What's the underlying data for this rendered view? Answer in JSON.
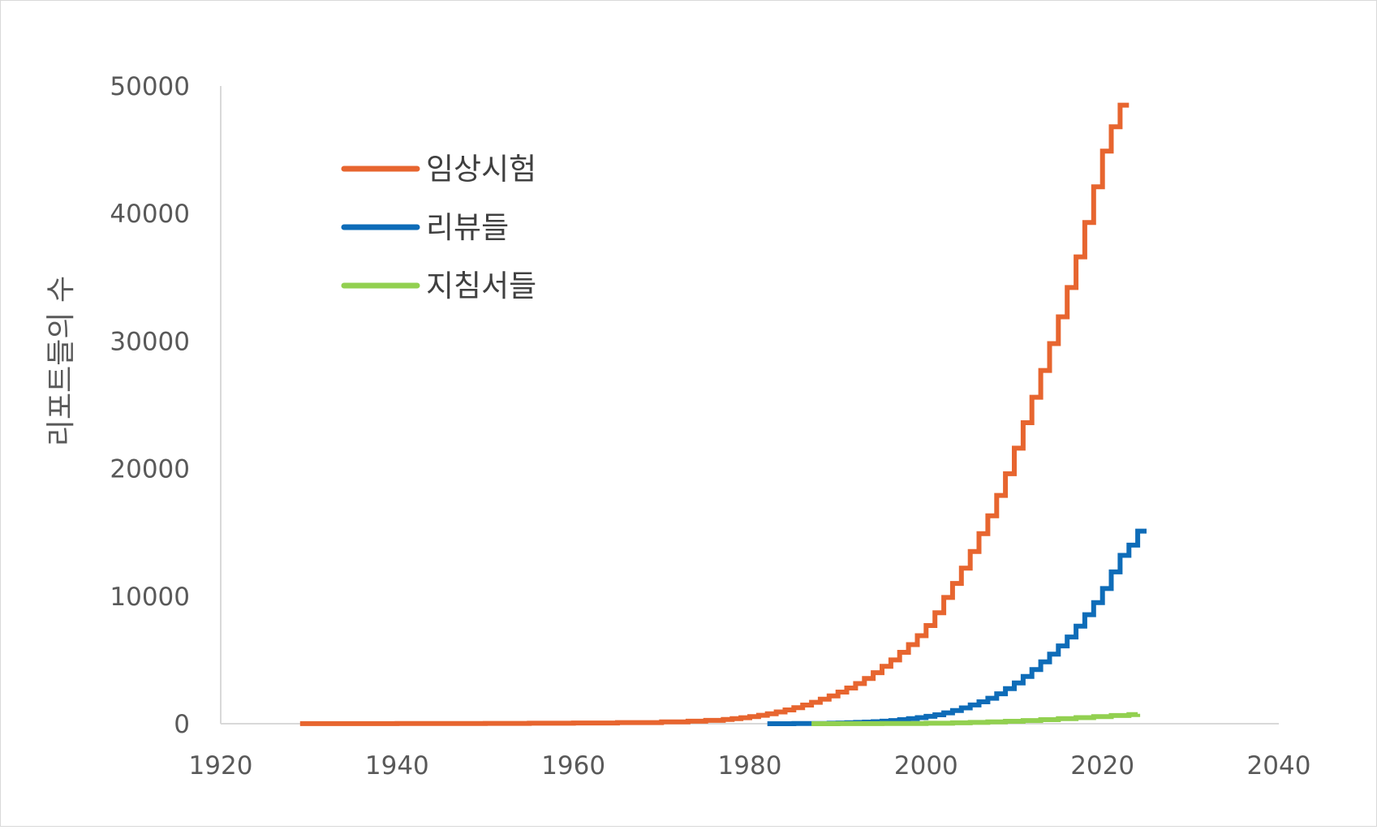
{
  "chart_data": {
    "type": "line",
    "title": "",
    "xlabel": "",
    "ylabel": "리포트들의 수",
    "xlim": [
      1920,
      2040
    ],
    "ylim": [
      0,
      50000
    ],
    "x_ticks": [
      "1920",
      "1940",
      "1960",
      "1980",
      "2000",
      "2020",
      "2040"
    ],
    "y_ticks": [
      "0",
      "10000",
      "20000",
      "30000",
      "40000",
      "50000"
    ],
    "grid": false,
    "legend_position": "top-left",
    "series": [
      {
        "name": "임상시험",
        "color": "#E7652F",
        "points": [
          [
            1929,
            5
          ],
          [
            1935,
            8
          ],
          [
            1940,
            12
          ],
          [
            1945,
            18
          ],
          [
            1950,
            28
          ],
          [
            1955,
            40
          ],
          [
            1960,
            60
          ],
          [
            1965,
            90
          ],
          [
            1970,
            140
          ],
          [
            1973,
            200
          ],
          [
            1975,
            260
          ],
          [
            1977,
            330
          ],
          [
            1978,
            400
          ],
          [
            1979,
            470
          ],
          [
            1980,
            560
          ],
          [
            1981,
            660
          ],
          [
            1982,
            780
          ],
          [
            1983,
            920
          ],
          [
            1984,
            1080
          ],
          [
            1985,
            1260
          ],
          [
            1986,
            1460
          ],
          [
            1987,
            1680
          ],
          [
            1988,
            1920
          ],
          [
            1989,
            2180
          ],
          [
            1990,
            2480
          ],
          [
            1991,
            2800
          ],
          [
            1992,
            3150
          ],
          [
            1993,
            3550
          ],
          [
            1994,
            4000
          ],
          [
            1995,
            4500
          ],
          [
            1996,
            5000
          ],
          [
            1997,
            5600
          ],
          [
            1998,
            6200
          ],
          [
            1999,
            6900
          ],
          [
            2000,
            7700
          ],
          [
            2001,
            8700
          ],
          [
            2002,
            9900
          ],
          [
            2003,
            11000
          ],
          [
            2004,
            12200
          ],
          [
            2005,
            13500
          ],
          [
            2006,
            14900
          ],
          [
            2007,
            16300
          ],
          [
            2008,
            17900
          ],
          [
            2009,
            19600
          ],
          [
            2010,
            21600
          ],
          [
            2011,
            23600
          ],
          [
            2012,
            25600
          ],
          [
            2013,
            27700
          ],
          [
            2014,
            29800
          ],
          [
            2015,
            31900
          ],
          [
            2016,
            34200
          ],
          [
            2017,
            36600
          ],
          [
            2018,
            39300
          ],
          [
            2019,
            42100
          ],
          [
            2020,
            44900
          ],
          [
            2021,
            46800
          ],
          [
            2022,
            48500
          ],
          [
            2023,
            48500
          ]
        ]
      },
      {
        "name": "리뷰들",
        "color": "#0E6CB8",
        "points": [
          [
            1982,
            0
          ],
          [
            1985,
            10
          ],
          [
            1987,
            20
          ],
          [
            1989,
            40
          ],
          [
            1990,
            60
          ],
          [
            1991,
            80
          ],
          [
            1992,
            100
          ],
          [
            1993,
            130
          ],
          [
            1994,
            160
          ],
          [
            1995,
            200
          ],
          [
            1996,
            250
          ],
          [
            1997,
            320
          ],
          [
            1998,
            400
          ],
          [
            1999,
            480
          ],
          [
            2000,
            580
          ],
          [
            2001,
            700
          ],
          [
            2002,
            850
          ],
          [
            2003,
            1030
          ],
          [
            2004,
            1240
          ],
          [
            2005,
            1470
          ],
          [
            2006,
            1720
          ],
          [
            2007,
            2000
          ],
          [
            2008,
            2350
          ],
          [
            2009,
            2750
          ],
          [
            2010,
            3200
          ],
          [
            2011,
            3700
          ],
          [
            2012,
            4250
          ],
          [
            2013,
            4850
          ],
          [
            2014,
            5450
          ],
          [
            2015,
            6100
          ],
          [
            2016,
            6800
          ],
          [
            2017,
            7650
          ],
          [
            2018,
            8550
          ],
          [
            2019,
            9500
          ],
          [
            2020,
            10600
          ],
          [
            2021,
            11900
          ],
          [
            2022,
            13200
          ],
          [
            2023,
            14000
          ],
          [
            2024,
            15100
          ],
          [
            2025,
            15100
          ]
        ]
      },
      {
        "name": "지침서들",
        "color": "#92D050",
        "points": [
          [
            1987,
            0
          ],
          [
            1990,
            5
          ],
          [
            1995,
            15
          ],
          [
            2000,
            40
          ],
          [
            2003,
            70
          ],
          [
            2005,
            100
          ],
          [
            2007,
            140
          ],
          [
            2009,
            190
          ],
          [
            2011,
            250
          ],
          [
            2013,
            320
          ],
          [
            2015,
            400
          ],
          [
            2017,
            480
          ],
          [
            2019,
            560
          ],
          [
            2021,
            640
          ],
          [
            2023,
            720
          ],
          [
            2024,
            780
          ]
        ]
      }
    ]
  }
}
